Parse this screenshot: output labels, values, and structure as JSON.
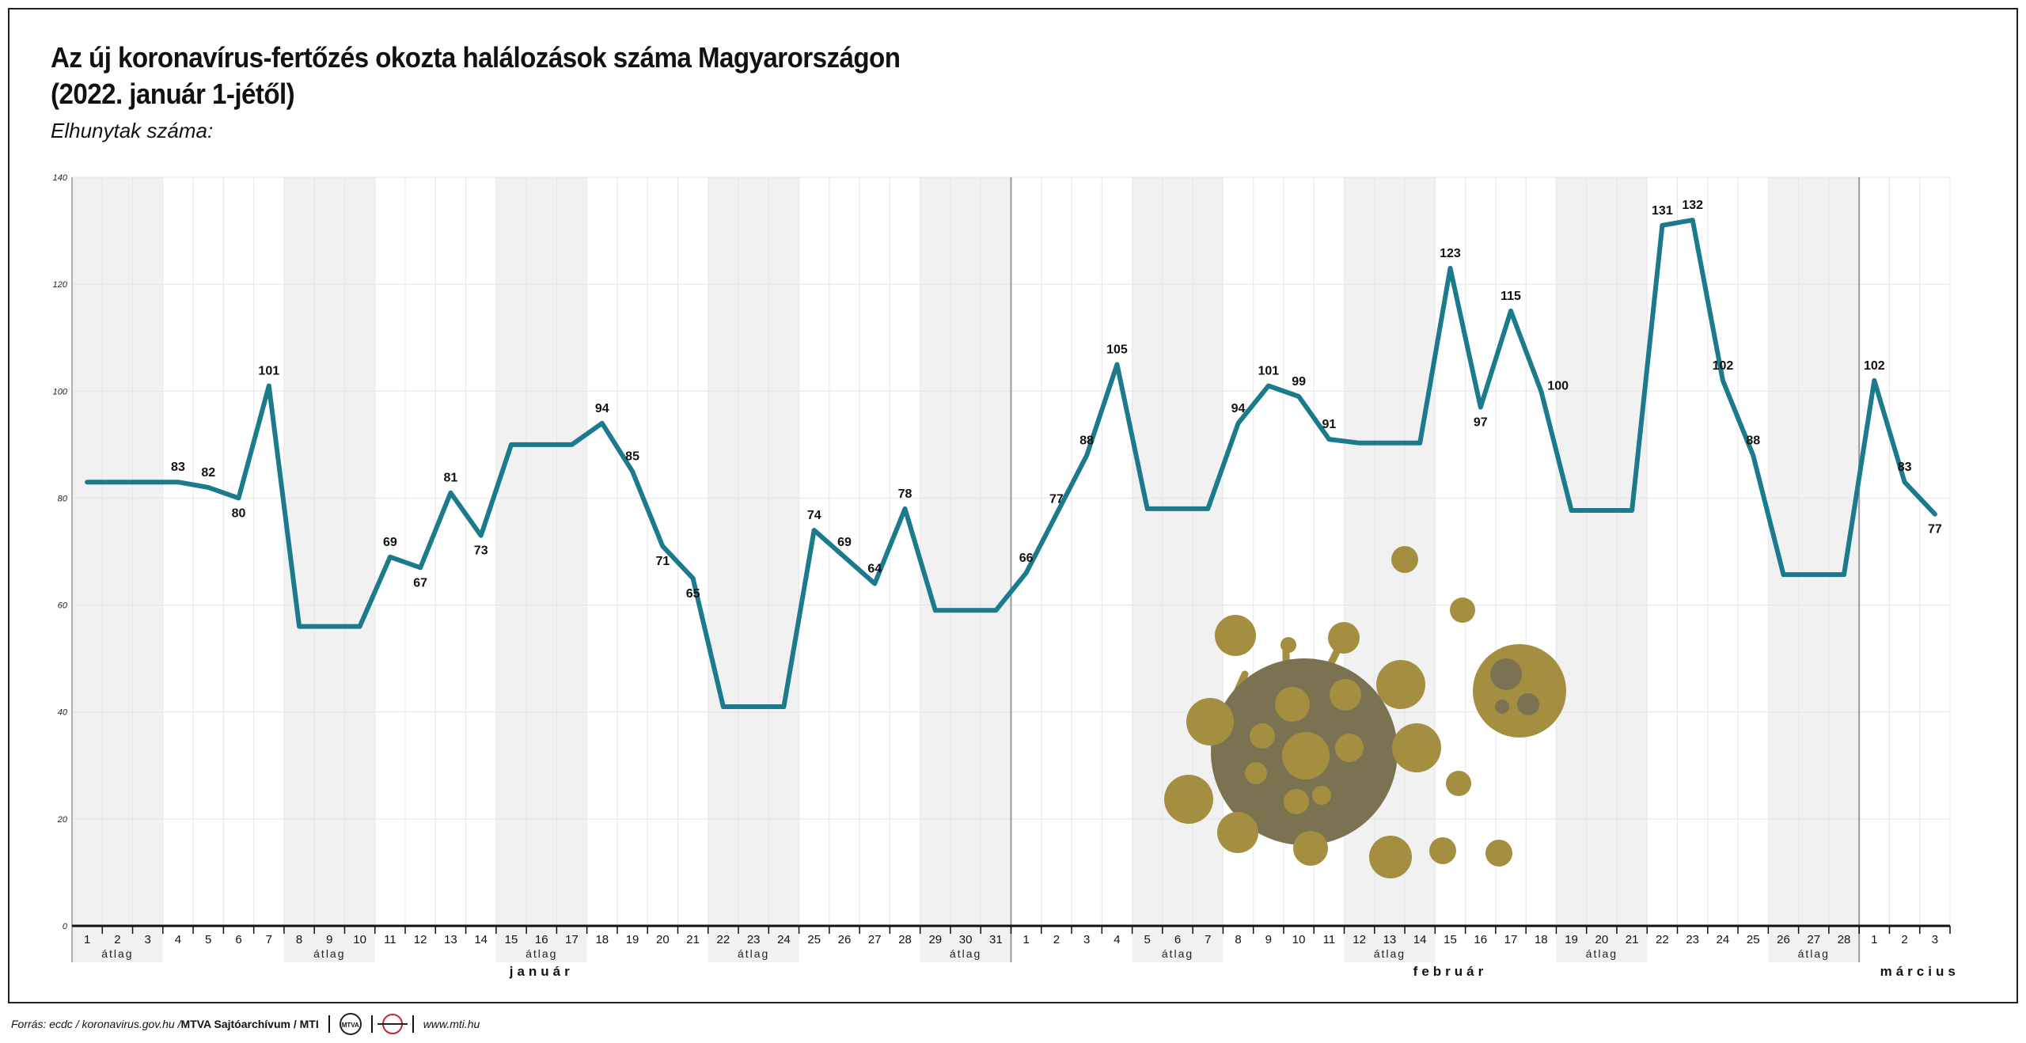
{
  "title_line1": "Az új koronavírus-fertőzés okozta halálozások száma Magyarországon",
  "title_line2": "(2022. január 1-jétől)",
  "subtitle": "Elhunytak száma:",
  "footer": {
    "source": "Forrás: ecdc / koronavirus.gov.hu / ",
    "archive": "MTVA Sajtóarchívum / MTI",
    "logo_text": "MTVA",
    "site": "www.mti.hu"
  },
  "colors": {
    "line": "#1b7a8c",
    "shade": "#f1f1f1",
    "virus_dark": "#7b7252",
    "virus_light": "#a38f3f"
  },
  "chart_data": {
    "type": "line",
    "ylim": [
      0,
      140
    ],
    "yticks": [
      0,
      20,
      40,
      60,
      80,
      100,
      120,
      140
    ],
    "grid": true,
    "series": [
      {
        "values": [
          83,
          83,
          83,
          83,
          82,
          80,
          101,
          56,
          56,
          56,
          69,
          67,
          81,
          73,
          90,
          90,
          90,
          94,
          85,
          71,
          65,
          41,
          41,
          41,
          74,
          69,
          64,
          78,
          59,
          59,
          59,
          66,
          77,
          88,
          105,
          78,
          78,
          78,
          94,
          101,
          99,
          91,
          90.3,
          90.3,
          90.3,
          123,
          97,
          115,
          100,
          77.7,
          77.7,
          77.7,
          131,
          132,
          102,
          88,
          65.7,
          65.7,
          65.7,
          102,
          83,
          77
        ]
      }
    ],
    "x_day_labels": [
      "1",
      "2",
      "3",
      "4",
      "5",
      "6",
      "7",
      "8",
      "9",
      "10",
      "11",
      "12",
      "13",
      "14",
      "15",
      "16",
      "17",
      "18",
      "19",
      "20",
      "21",
      "22",
      "23",
      "24",
      "25",
      "26",
      "27",
      "28",
      "29",
      "30",
      "31",
      "1",
      "2",
      "3",
      "4",
      "5",
      "6",
      "7",
      "8",
      "9",
      "10",
      "11",
      "12",
      "13",
      "14",
      "15",
      "16",
      "17",
      "18",
      "19",
      "20",
      "21",
      "22",
      "23",
      "24",
      "25",
      "26",
      "27",
      "28",
      "1",
      "2",
      "3"
    ],
    "data_labels": [
      {
        "index": 3,
        "text": "83",
        "pos": "above"
      },
      {
        "index": 4,
        "text": "82",
        "pos": "above"
      },
      {
        "index": 5,
        "text": "80",
        "pos": "below"
      },
      {
        "index": 6,
        "text": "101",
        "pos": "above"
      },
      {
        "index": 10,
        "text": "69",
        "pos": "above"
      },
      {
        "index": 11,
        "text": "67",
        "pos": "below"
      },
      {
        "index": 12,
        "text": "81",
        "pos": "above"
      },
      {
        "index": 13,
        "text": "73",
        "pos": "below"
      },
      {
        "index": 17,
        "text": "94",
        "pos": "above"
      },
      {
        "index": 18,
        "text": "85",
        "pos": "above"
      },
      {
        "index": 19,
        "text": "71",
        "pos": "below"
      },
      {
        "index": 20,
        "text": "65",
        "pos": "below"
      },
      {
        "index": 24,
        "text": "74",
        "pos": "above"
      },
      {
        "index": 25,
        "text": "69",
        "pos": "above"
      },
      {
        "index": 26,
        "text": "64",
        "pos": "above"
      },
      {
        "index": 27,
        "text": "78",
        "pos": "above"
      },
      {
        "index": 31,
        "text": "66",
        "pos": "above"
      },
      {
        "index": 32,
        "text": "77",
        "pos": "above"
      },
      {
        "index": 33,
        "text": "88",
        "pos": "above"
      },
      {
        "index": 34,
        "text": "105",
        "pos": "above"
      },
      {
        "index": 38,
        "text": "94",
        "pos": "above"
      },
      {
        "index": 39,
        "text": "101",
        "pos": "above"
      },
      {
        "index": 40,
        "text": "99",
        "pos": "above"
      },
      {
        "index": 41,
        "text": "91",
        "pos": "above"
      },
      {
        "index": 45,
        "text": "123",
        "pos": "above"
      },
      {
        "index": 46,
        "text": "97",
        "pos": "below"
      },
      {
        "index": 47,
        "text": "115",
        "pos": "above"
      },
      {
        "index": 48,
        "text": "100",
        "pos": "right"
      },
      {
        "index": 52,
        "text": "131",
        "pos": "above"
      },
      {
        "index": 53,
        "text": "132",
        "pos": "above"
      },
      {
        "index": 54,
        "text": "102",
        "pos": "above"
      },
      {
        "index": 55,
        "text": "88",
        "pos": "above"
      },
      {
        "index": 59,
        "text": "102",
        "pos": "above"
      },
      {
        "index": 60,
        "text": "83",
        "pos": "above"
      },
      {
        "index": 61,
        "text": "77",
        "pos": "below"
      }
    ],
    "averaged_periods": [
      {
        "start": 0,
        "end": 2,
        "label": "átlag"
      },
      {
        "start": 7,
        "end": 9,
        "label": "átlag"
      },
      {
        "start": 14,
        "end": 16,
        "label": "átlag"
      },
      {
        "start": 21,
        "end": 23,
        "label": "átlag"
      },
      {
        "start": 28,
        "end": 30,
        "label": "átlag"
      },
      {
        "start": 35,
        "end": 37,
        "label": "átlag"
      },
      {
        "start": 42,
        "end": 44,
        "label": "átlag"
      },
      {
        "start": 49,
        "end": 51,
        "label": "átlag"
      },
      {
        "start": 56,
        "end": 58,
        "label": "átlag"
      }
    ],
    "months": [
      {
        "label": "január",
        "center": 15
      },
      {
        "label": "február",
        "center": 45
      },
      {
        "label": "március",
        "center": 60.5
      }
    ],
    "month_breaks": [
      31,
      59
    ]
  }
}
